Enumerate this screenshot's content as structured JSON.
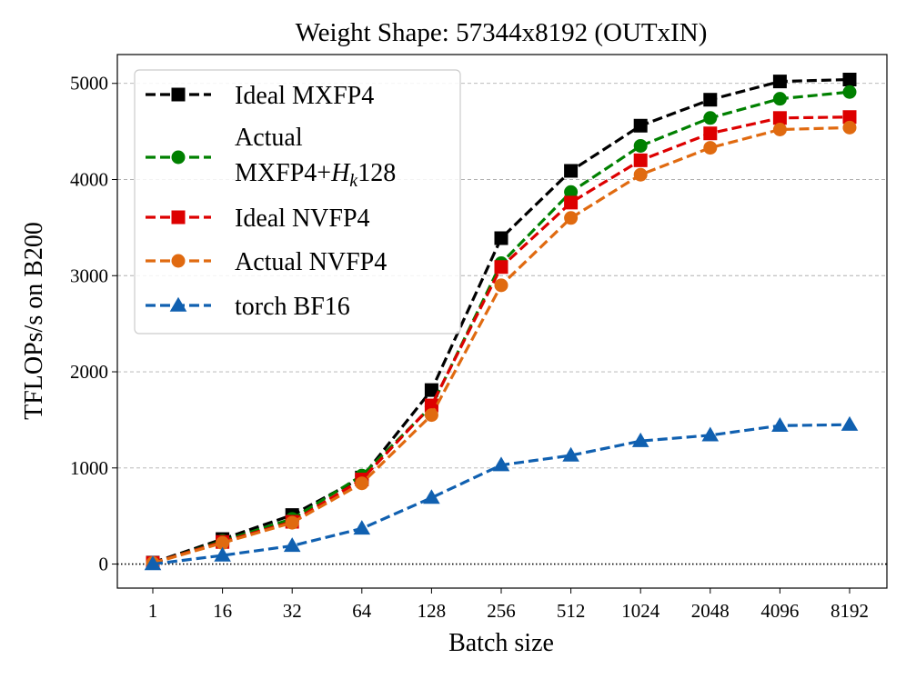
{
  "chart_data": {
    "type": "line",
    "title": "Weight Shape: 57344x8192 (OUTxIN)",
    "xlabel": "Batch size",
    "ylabel": "TFLOPs/s on B200",
    "categories": [
      "1",
      "16",
      "32",
      "64",
      "128",
      "256",
      "512",
      "1024",
      "2048",
      "4096",
      "8192"
    ],
    "ylim": [
      -250,
      5300
    ],
    "yticks": [
      0,
      1000,
      2000,
      3000,
      4000,
      5000
    ],
    "grid": "horizontal-dashed",
    "zero_line": "dotted",
    "legend_position": "top-left",
    "series": [
      {
        "name": "Ideal MXFP4",
        "color": "#000000",
        "marker": "square",
        "values": [
          15,
          260,
          510,
          900,
          1810,
          3390,
          4090,
          4560,
          4830,
          5020,
          5040
        ]
      },
      {
        "name_line1": "Actual",
        "name_line2_prefix": " MXFP4+",
        "name_line2_math": "H",
        "name_line2_sub": "k",
        "name_line2_suffix": "128",
        "color": "#008000",
        "marker": "circle",
        "values": [
          10,
          240,
          470,
          920,
          1640,
          3130,
          3870,
          4350,
          4640,
          4840,
          4910
        ]
      },
      {
        "name": "Ideal NVFP4",
        "color": "#dd0000",
        "marker": "square",
        "values": [
          12,
          230,
          440,
          880,
          1650,
          3090,
          3760,
          4200,
          4480,
          4640,
          4650
        ]
      },
      {
        "name": "Actual NVFP4",
        "color": "#e06a10",
        "marker": "circle",
        "values": [
          10,
          220,
          430,
          840,
          1550,
          2900,
          3600,
          4050,
          4330,
          4520,
          4540
        ]
      },
      {
        "name": "torch BF16",
        "color": "#1060b0",
        "marker": "triangle",
        "values": [
          0,
          90,
          190,
          370,
          690,
          1030,
          1130,
          1280,
          1340,
          1440,
          1450
        ]
      }
    ]
  }
}
